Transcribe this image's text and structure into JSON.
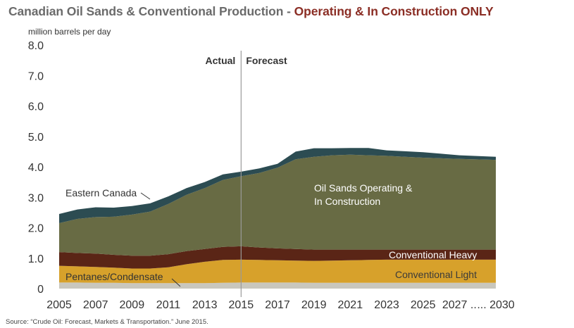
{
  "title": {
    "part1": "Canadian Oil Sands & Conventional Production - ",
    "part2": "Operating & In Construction ONLY"
  },
  "unit_label": "million barrels per day",
  "source": "Source: “Crude Oil: Forecast, Markets & Transportation.” June 2015.",
  "colors": {
    "pentanes": "#c9c7bd",
    "conventional_light": "#d7a12b",
    "conventional_heavy": "#5a2516",
    "oil_sands": "#686b44",
    "eastern_canada": "#2c4c52",
    "divider": "#9a9a9a"
  },
  "chart_data": {
    "type": "area",
    "stacked": true,
    "ylim": [
      0,
      8
    ],
    "yticks": [
      "0",
      "1.0",
      "2.0",
      "3.0",
      "4.0",
      "5.0",
      "6.0",
      "7.0",
      "8.0"
    ],
    "xtick_labels": [
      "2005",
      "2007",
      "2009",
      "2011",
      "2013",
      "2015",
      "2017",
      "2019",
      "2021",
      "2023",
      "2025",
      "2027 ..",
      "... 2030"
    ],
    "x": [
      2005,
      2006,
      2007,
      2008,
      2009,
      2010,
      2011,
      2012,
      2013,
      2014,
      2015,
      2016,
      2017,
      2018,
      2019,
      2020,
      2021,
      2022,
      2023,
      2024,
      2025,
      2026,
      2027,
      2030
    ],
    "series": [
      {
        "name": "Pentanes/Condensate",
        "color": "#c9c7bd",
        "values": [
          0.2,
          0.2,
          0.19,
          0.19,
          0.18,
          0.18,
          0.18,
          0.18,
          0.18,
          0.19,
          0.2,
          0.2,
          0.2,
          0.2,
          0.19,
          0.19,
          0.19,
          0.19,
          0.19,
          0.19,
          0.19,
          0.19,
          0.19,
          0.19
        ]
      },
      {
        "name": "Conventional Light",
        "color": "#d7a12b",
        "values": [
          0.55,
          0.53,
          0.52,
          0.5,
          0.48,
          0.48,
          0.52,
          0.62,
          0.7,
          0.75,
          0.75,
          0.74,
          0.73,
          0.72,
          0.72,
          0.73,
          0.74,
          0.75,
          0.76,
          0.76,
          0.76,
          0.76,
          0.76,
          0.76
        ]
      },
      {
        "name": "Conventional Heavy",
        "color": "#5a2516",
        "values": [
          0.45,
          0.44,
          0.44,
          0.42,
          0.42,
          0.42,
          0.43,
          0.43,
          0.42,
          0.43,
          0.44,
          0.41,
          0.39,
          0.38,
          0.37,
          0.36,
          0.35,
          0.34,
          0.33,
          0.33,
          0.33,
          0.33,
          0.33,
          0.33
        ]
      },
      {
        "name": "Oil Sands Operating & In Construction",
        "color": "#686b44",
        "values": [
          0.95,
          1.12,
          1.2,
          1.25,
          1.35,
          1.45,
          1.65,
          1.85,
          2.0,
          2.2,
          2.3,
          2.45,
          2.65,
          2.95,
          3.05,
          3.1,
          3.12,
          3.1,
          3.08,
          3.05,
          3.02,
          3.0,
          2.98,
          2.95
        ]
      },
      {
        "name": "Eastern Canada",
        "color": "#2c4c52",
        "values": [
          0.3,
          0.31,
          0.32,
          0.3,
          0.28,
          0.27,
          0.25,
          0.22,
          0.2,
          0.18,
          0.15,
          0.15,
          0.13,
          0.25,
          0.28,
          0.23,
          0.22,
          0.24,
          0.18,
          0.18,
          0.18,
          0.15,
          0.12,
          0.1
        ]
      }
    ],
    "divider_x": 2015,
    "annotations": {
      "actual": "Actual",
      "forecast": "Forecast",
      "oil_sands_line1": "Oil Sands Operating &",
      "oil_sands_line2": "In Construction",
      "conventional_heavy": "Conventional Heavy",
      "conventional_light": "Conventional Light",
      "eastern_canada": "Eastern Canada",
      "pentanes": "Pentanes/Condensate"
    },
    "grid": false,
    "legend": "inline labels"
  }
}
